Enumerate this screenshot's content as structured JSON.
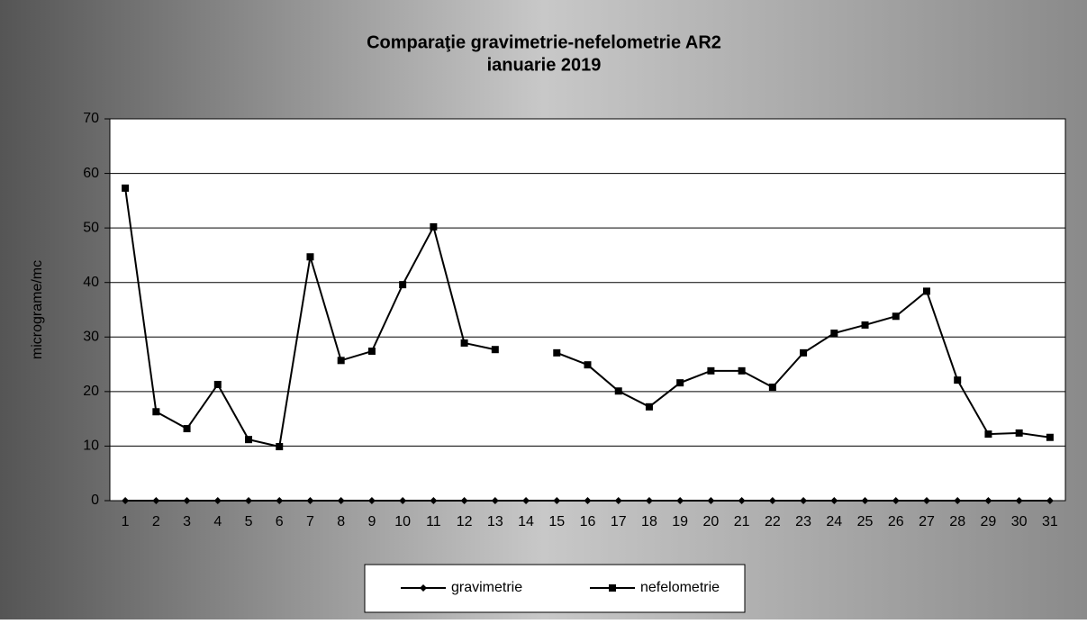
{
  "chart_data": {
    "type": "line",
    "title": "Comparaţie gravimetrie-nefelometrie AR2",
    "subtitle": "ianuarie 2019",
    "y_label": "micrograme/mc",
    "categories": [
      "1",
      "2",
      "3",
      "4",
      "5",
      "6",
      "7",
      "8",
      "9",
      "10",
      "11",
      "12",
      "13",
      "14",
      "15",
      "16",
      "17",
      "18",
      "19",
      "20",
      "21",
      "22",
      "23",
      "24",
      "25",
      "26",
      "27",
      "28",
      "29",
      "30",
      "31"
    ],
    "series": [
      {
        "name": "gravimetrie",
        "color": "#000000",
        "marker": "diamond",
        "values": [
          0,
          0,
          0,
          0,
          0,
          0,
          0,
          0,
          0,
          0,
          0,
          0,
          0,
          0,
          0,
          0,
          0,
          0,
          0,
          0,
          0,
          0,
          0,
          0,
          0,
          0,
          0,
          0,
          0,
          0,
          0
        ]
      },
      {
        "name": "nefelometrie",
        "color": "#000000",
        "marker": "square",
        "values": [
          57.3,
          16.3,
          13.2,
          21.3,
          11.2,
          9.9,
          44.7,
          25.7,
          27.4,
          39.6,
          50.2,
          28.9,
          27.7,
          null,
          27.1,
          24.9,
          20.1,
          17.2,
          21.6,
          23.8,
          23.8,
          20.8,
          27.1,
          30.7,
          32.2,
          33.8,
          38.4,
          22.1,
          12.2,
          12.4,
          11.6
        ]
      }
    ],
    "ylim": [
      0,
      70
    ],
    "yticks": [
      0,
      10,
      20,
      30,
      40,
      50,
      60,
      70
    ],
    "grid": true,
    "legend": "bottom"
  }
}
